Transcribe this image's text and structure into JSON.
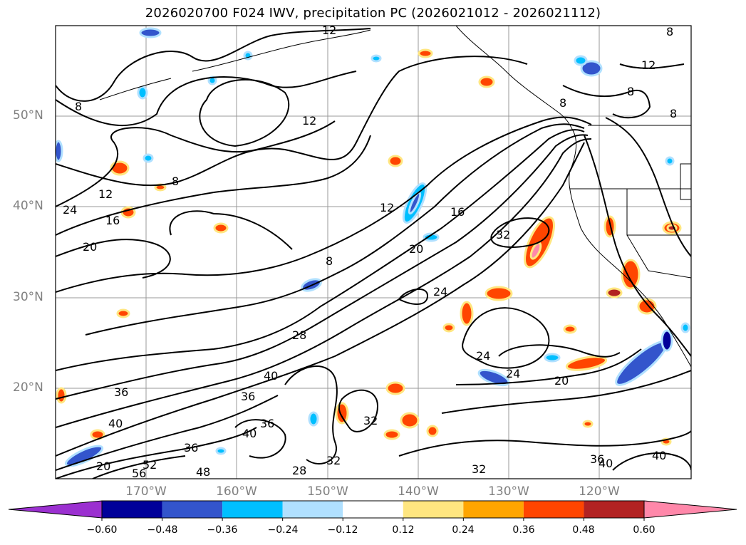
{
  "title": "2026020700 F024 IWV, precipitation PC (2026021012 - 2026021112)",
  "latitude_labels": [
    "50°N",
    "40°N",
    "30°N",
    "20°N"
  ],
  "longitude_labels": [
    "170°W",
    "160°W",
    "150°W",
    "140°W",
    "130°W",
    "120°W"
  ],
  "contour_labels": [
    "12",
    "8",
    "12",
    "8",
    "8",
    "12",
    "24",
    "12",
    "16",
    "20",
    "16",
    "20",
    "8",
    "12",
    "32",
    "24",
    "28",
    "20",
    "40",
    "36",
    "36",
    "32",
    "40",
    "36",
    "24",
    "24",
    "20",
    "40",
    "36",
    "40",
    "28",
    "32",
    "32",
    "48",
    "56",
    "52",
    "36",
    "40",
    "8",
    "8",
    "8"
  ],
  "colorbar": {
    "ticks": [
      "−0.60",
      "−0.48",
      "−0.36",
      "−0.24",
      "−0.12",
      "0.12",
      "0.24",
      "0.36",
      "0.48",
      "0.60"
    ],
    "colors": [
      "#9b30d0",
      "#000099",
      "#3355cc",
      "#00bfff",
      "#b0e0ff",
      "#ffffff",
      "#ffe680",
      "#ffa500",
      "#ff4500",
      "#b22222",
      "#ff88aa"
    ]
  }
}
